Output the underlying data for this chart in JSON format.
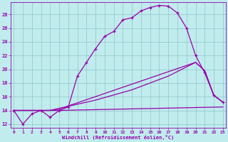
{
  "xlabel": "Windchill (Refroidissement éolien,°C)",
  "bg_color": "#c0ecee",
  "line_color": "#9900aa",
  "grid_color": "#90c4c8",
  "curve1_x": [
    0,
    1,
    2,
    3,
    4,
    5,
    6,
    7,
    8,
    9,
    10,
    11,
    12,
    13,
    14,
    15,
    16,
    17,
    18,
    19,
    20,
    21,
    22,
    23
  ],
  "curve1_y": [
    14,
    12,
    13.5,
    14,
    13,
    14,
    14.5,
    19,
    21,
    23,
    24.8,
    25.5,
    27.2,
    27.5,
    28.5,
    29,
    29.3,
    29.2,
    28.2,
    26,
    22,
    19.5,
    16.2,
    15.2
  ],
  "curve2_x": [
    0,
    4,
    5,
    23
  ],
  "curve2_y": [
    14,
    14,
    14,
    14.5
  ],
  "curve3_x": [
    0,
    4,
    5,
    20,
    21,
    22,
    23
  ],
  "curve3_y": [
    14,
    14,
    14.2,
    21,
    19.8,
    16.2,
    15.2
  ],
  "curve4_x": [
    0,
    4,
    5,
    9,
    13,
    17,
    20,
    21,
    22,
    23
  ],
  "curve4_y": [
    14,
    14,
    14.3,
    15.5,
    17,
    19,
    21,
    19.8,
    16.2,
    15.2
  ],
  "xlim": [
    -0.3,
    23.3
  ],
  "ylim": [
    11.5,
    29.8
  ],
  "yticks": [
    12,
    14,
    16,
    18,
    20,
    22,
    24,
    26,
    28
  ],
  "xticks": [
    0,
    1,
    2,
    3,
    4,
    5,
    6,
    7,
    8,
    9,
    10,
    11,
    12,
    13,
    14,
    15,
    16,
    17,
    18,
    19,
    20,
    21,
    22,
    23
  ]
}
